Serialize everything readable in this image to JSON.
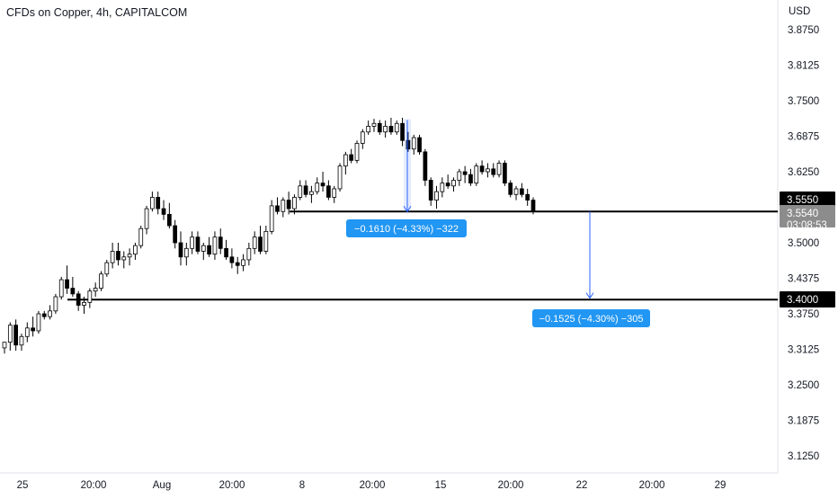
{
  "header": {
    "title": "CFDs on Copper, 4h, CAPITALCOM"
  },
  "chart_data": {
    "type": "candlestick",
    "title": "CFDs on Copper, 4h, CAPITALCOM",
    "currency": "USD",
    "y_ticks": [
      "3.8750",
      "3.8125",
      "3.7500",
      "3.6875",
      "3.6250",
      "3.5625",
      "3.5000",
      "3.4375",
      "3.3750",
      "3.3125",
      "3.2500",
      "3.1875",
      "3.1250"
    ],
    "x_ticks": [
      "25",
      "20:00",
      "Aug",
      "20:00",
      "8",
      "20:00",
      "15",
      "20:00",
      "22",
      "20:00",
      "29"
    ],
    "ylim": [
      3.1,
      3.9
    ],
    "price_tags": {
      "upper_level": "3.5550",
      "last_price": "3.5540",
      "countdown": "03:08:53",
      "lower_level": "3.4000"
    },
    "horizontal_levels": [
      3.555,
      3.4
    ],
    "measurements": [
      {
        "label": "−0.1610 (−4.33%) −322",
        "from": 3.716,
        "to": 3.555
      },
      {
        "label": "−0.1525 (−4.30%) −305",
        "from": 3.555,
        "to": 3.4025
      }
    ],
    "colors": {
      "up": "#ffffff",
      "down": "#000000",
      "wick": "#000000",
      "measure": "#2962ff",
      "measure_label_bg": "#2196f3",
      "last_price_tag": "#8c8c8c"
    },
    "candles": [
      [
        3.315,
        3.325,
        3.305,
        3.325
      ],
      [
        3.325,
        3.36,
        3.31,
        3.355
      ],
      [
        3.355,
        3.365,
        3.31,
        3.32
      ],
      [
        3.32,
        3.34,
        3.31,
        3.335
      ],
      [
        3.335,
        3.36,
        3.325,
        3.35
      ],
      [
        3.35,
        3.37,
        3.335,
        3.345
      ],
      [
        3.345,
        3.38,
        3.34,
        3.375
      ],
      [
        3.375,
        3.38,
        3.365,
        3.37
      ],
      [
        3.37,
        3.39,
        3.365,
        3.38
      ],
      [
        3.38,
        3.41,
        3.375,
        3.405
      ],
      [
        3.405,
        3.44,
        3.4,
        3.435
      ],
      [
        3.435,
        3.46,
        3.41,
        3.42
      ],
      [
        3.42,
        3.44,
        3.405,
        3.41
      ],
      [
        3.41,
        3.415,
        3.38,
        3.39
      ],
      [
        3.39,
        3.405,
        3.375,
        3.395
      ],
      [
        3.395,
        3.42,
        3.385,
        3.415
      ],
      [
        3.415,
        3.43,
        3.405,
        3.42
      ],
      [
        3.42,
        3.45,
        3.415,
        3.445
      ],
      [
        3.445,
        3.47,
        3.44,
        3.465
      ],
      [
        3.465,
        3.5,
        3.455,
        3.485
      ],
      [
        3.485,
        3.5,
        3.46,
        3.47
      ],
      [
        3.47,
        3.485,
        3.455,
        3.475
      ],
      [
        3.475,
        3.49,
        3.46,
        3.48
      ],
      [
        3.48,
        3.5,
        3.47,
        3.495
      ],
      [
        3.495,
        3.53,
        3.49,
        3.525
      ],
      [
        3.525,
        3.565,
        3.515,
        3.56
      ],
      [
        3.56,
        3.59,
        3.555,
        3.58
      ],
      [
        3.58,
        3.59,
        3.55,
        3.56
      ],
      [
        3.56,
        3.575,
        3.54,
        3.55
      ],
      [
        3.55,
        3.57,
        3.525,
        3.53
      ],
      [
        3.53,
        3.54,
        3.49,
        3.5
      ],
      [
        3.5,
        3.52,
        3.46,
        3.475
      ],
      [
        3.475,
        3.5,
        3.46,
        3.49
      ],
      [
        3.49,
        3.52,
        3.48,
        3.51
      ],
      [
        3.51,
        3.52,
        3.48,
        3.485
      ],
      [
        3.485,
        3.5,
        3.47,
        3.495
      ],
      [
        3.495,
        3.51,
        3.475,
        3.48
      ],
      [
        3.48,
        3.52,
        3.47,
        3.51
      ],
      [
        3.51,
        3.525,
        3.48,
        3.49
      ],
      [
        3.49,
        3.505,
        3.47,
        3.475
      ],
      [
        3.475,
        3.49,
        3.455,
        3.465
      ],
      [
        3.465,
        3.475,
        3.445,
        3.46
      ],
      [
        3.46,
        3.48,
        3.45,
        3.47
      ],
      [
        3.47,
        3.5,
        3.46,
        3.49
      ],
      [
        3.49,
        3.52,
        3.48,
        3.51
      ],
      [
        3.51,
        3.53,
        3.48,
        3.485
      ],
      [
        3.485,
        3.53,
        3.48,
        3.52
      ],
      [
        3.52,
        3.575,
        3.515,
        3.565
      ],
      [
        3.565,
        3.58,
        3.55,
        3.555
      ],
      [
        3.555,
        3.58,
        3.545,
        3.575
      ],
      [
        3.575,
        3.59,
        3.55,
        3.56
      ],
      [
        3.56,
        3.585,
        3.55,
        3.58
      ],
      [
        3.58,
        3.61,
        3.575,
        3.6
      ],
      [
        3.6,
        3.61,
        3.58,
        3.585
      ],
      [
        3.585,
        3.6,
        3.57,
        3.59
      ],
      [
        3.59,
        3.615,
        3.585,
        3.605
      ],
      [
        3.605,
        3.625,
        3.59,
        3.6
      ],
      [
        3.6,
        3.61,
        3.575,
        3.58
      ],
      [
        3.58,
        3.6,
        3.57,
        3.595
      ],
      [
        3.595,
        3.64,
        3.59,
        3.635
      ],
      [
        3.635,
        3.66,
        3.62,
        3.655
      ],
      [
        3.655,
        3.665,
        3.64,
        3.645
      ],
      [
        3.645,
        3.68,
        3.64,
        3.675
      ],
      [
        3.675,
        3.7,
        3.665,
        3.695
      ],
      [
        3.695,
        3.715,
        3.69,
        3.705
      ],
      [
        3.705,
        3.718,
        3.695,
        3.71
      ],
      [
        3.71,
        3.716,
        3.69,
        3.695
      ],
      [
        3.695,
        3.715,
        3.685,
        3.705
      ],
      [
        3.705,
        3.72,
        3.69,
        3.695
      ],
      [
        3.695,
        3.715,
        3.69,
        3.71
      ],
      [
        3.71,
        3.72,
        3.67,
        3.68
      ],
      [
        3.68,
        3.695,
        3.66,
        3.665
      ],
      [
        3.665,
        3.69,
        3.655,
        3.685
      ],
      [
        3.685,
        3.69,
        3.655,
        3.66
      ],
      [
        3.66,
        3.665,
        3.6,
        3.61
      ],
      [
        3.61,
        3.615,
        3.565,
        3.575
      ],
      [
        3.575,
        3.6,
        3.56,
        3.59
      ],
      [
        3.59,
        3.615,
        3.58,
        3.605
      ],
      [
        3.605,
        3.62,
        3.595,
        3.6
      ],
      [
        3.6,
        3.615,
        3.59,
        3.61
      ],
      [
        3.61,
        3.63,
        3.6,
        3.625
      ],
      [
        3.625,
        3.635,
        3.605,
        3.62
      ],
      [
        3.62,
        3.63,
        3.6,
        3.605
      ],
      [
        3.605,
        3.64,
        3.6,
        3.635
      ],
      [
        3.635,
        3.645,
        3.62,
        3.625
      ],
      [
        3.625,
        3.64,
        3.615,
        3.63
      ],
      [
        3.63,
        3.64,
        3.615,
        3.62
      ],
      [
        3.62,
        3.645,
        3.615,
        3.64
      ],
      [
        3.64,
        3.645,
        3.6,
        3.605
      ],
      [
        3.605,
        3.61,
        3.58,
        3.585
      ],
      [
        3.585,
        3.6,
        3.575,
        3.595
      ],
      [
        3.595,
        3.605,
        3.58,
        3.585
      ],
      [
        3.585,
        3.595,
        3.565,
        3.575
      ],
      [
        3.575,
        3.58,
        3.55,
        3.555
      ]
    ]
  }
}
